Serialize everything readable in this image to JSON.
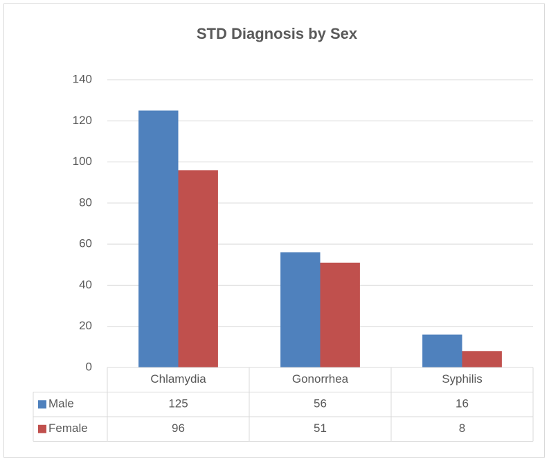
{
  "chart_data": {
    "type": "bar",
    "title": "STD Diagnosis by Sex",
    "categories": [
      "Chlamydia",
      "Gonorrhea",
      "Syphilis"
    ],
    "series": [
      {
        "name": "Male",
        "color": "#4f81bd",
        "values": [
          125,
          56,
          16
        ]
      },
      {
        "name": "Female",
        "color": "#c0504d",
        "values": [
          96,
          51,
          8
        ]
      }
    ],
    "ylim": [
      0,
      140
    ],
    "yticks": [
      0,
      20,
      40,
      60,
      80,
      100,
      120,
      140
    ],
    "grid": true,
    "data_table": true
  }
}
